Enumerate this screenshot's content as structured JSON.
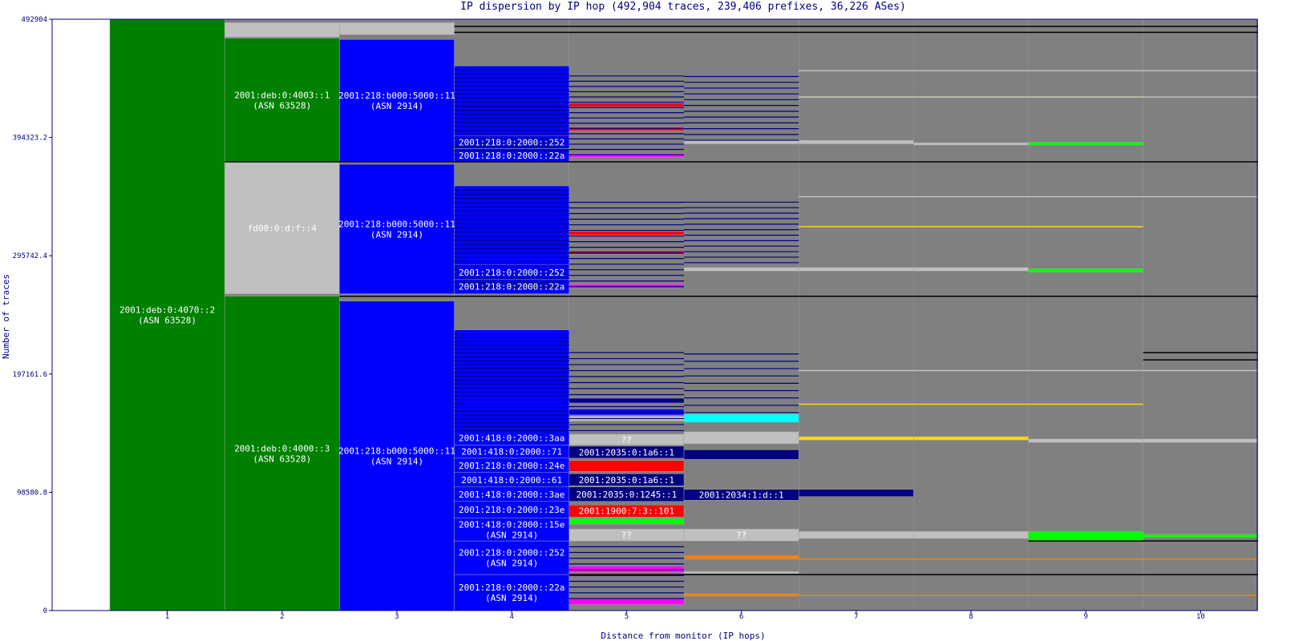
{
  "chart_data": {
    "type": "bar",
    "title": "IP dispersion by IP hop (492,904 traces, 239,406 prefixes, 36,226 ASes)",
    "xlabel": "Distance from monitor (IP hops)",
    "ylabel": "Number of traces",
    "x_ticks": [
      "1",
      "2",
      "3",
      "4",
      "5",
      "6",
      "7",
      "8",
      "9",
      "10"
    ],
    "y_ticks": [
      "492904",
      "394323.2",
      "295742.4",
      "197161.6",
      "98580.8",
      "0"
    ],
    "ylim": [
      0,
      492904
    ],
    "colors": {
      "axis": "#000080",
      "background": "#808080",
      "green": "#008000",
      "blue": "#0000ff",
      "navy": "#000080",
      "light_gray": "#c0c0c0",
      "red": "#ff0000",
      "magenta": "#ff00ff",
      "bright_green": "#00ff00",
      "cyan": "#00ffff",
      "orange": "#ff8000",
      "yellow": "#ffd700",
      "black": "#000000"
    },
    "cells": [
      {
        "hop": 1,
        "y0": 0,
        "y1": 492904,
        "color": "#008000",
        "labels": [
          "2001:deb:0:4070::2",
          "(ASN 63528)"
        ]
      },
      {
        "hop": 2,
        "y0": 374000,
        "y1": 477000,
        "color": "#008000",
        "labels": [
          "2001:deb:0:4003::1",
          "(ASN 63528)"
        ]
      },
      {
        "hop": 2,
        "y0": 478000,
        "y1": 490000,
        "color": "#c0c0c0",
        "labels": []
      },
      {
        "hop": 2,
        "y0": 264000,
        "y1": 374000,
        "color": "#c0c0c0",
        "labels": [
          "fd00:0:d:f::4"
        ]
      },
      {
        "hop": 2,
        "y0": 0,
        "y1": 262000,
        "color": "#008000",
        "labels": [
          "2001:deb:0:4000::3",
          "(ASN 63528)"
        ]
      },
      {
        "hop": 3,
        "y0": 374000,
        "y1": 476000,
        "color": "#0000ff",
        "labels": [
          "2001:218:b000:5000::11",
          "(ASN 2914)"
        ]
      },
      {
        "hop": 3,
        "y0": 480000,
        "y1": 490000,
        "color": "#c0c0c0",
        "labels": []
      },
      {
        "hop": 3,
        "y0": 264000,
        "y1": 372000,
        "color": "#0000ff",
        "labels": [
          "2001:218:b000:5000::11",
          "(ASN 2914)"
        ]
      },
      {
        "hop": 3,
        "y0": 0,
        "y1": 258000,
        "color": "#0000ff",
        "labels": [
          "2001:218:b000:5000::11",
          "(ASN 2914)"
        ]
      },
      {
        "hop": 4,
        "y0": 385000,
        "y1": 454000,
        "color": "#0000ff",
        "labels": []
      },
      {
        "hop": 4,
        "y0": 374000,
        "y1": 385000,
        "color": "#0000ff",
        "labels": [
          "2001:218:0:2000::22a"
        ]
      },
      {
        "hop": 4,
        "y0": 385000,
        "y1": 396000,
        "color": "#0000ff",
        "labels": [
          "2001:218:0:2000::252"
        ]
      },
      {
        "hop": 4,
        "y0": 276000,
        "y1": 354000,
        "color": "#0000ff",
        "labels": []
      },
      {
        "hop": 4,
        "y0": 264000,
        "y1": 276000,
        "color": "#0000ff",
        "labels": [
          "2001:218:0:2000::22a"
        ]
      },
      {
        "hop": 4,
        "y0": 276000,
        "y1": 288000,
        "color": "#0000ff",
        "labels": [
          "2001:218:0:2000::252"
        ]
      },
      {
        "hop": 4,
        "y0": 150000,
        "y1": 234000,
        "color": "#0000ff",
        "labels": []
      },
      {
        "hop": 4,
        "y0": 138000,
        "y1": 150000,
        "color": "#0000ff",
        "labels": [
          "2001:418:0:2000::3aa"
        ]
      },
      {
        "hop": 4,
        "y0": 127000,
        "y1": 138000,
        "color": "#0000ff",
        "labels": [
          "2001:418:0:2000::71"
        ]
      },
      {
        "hop": 4,
        "y0": 115000,
        "y1": 127000,
        "color": "#0000ff",
        "labels": [
          "2001:218:0:2000::24e"
        ]
      },
      {
        "hop": 4,
        "y0": 103000,
        "y1": 115000,
        "color": "#0000ff",
        "labels": [
          "2001:418:0:2000::61"
        ]
      },
      {
        "hop": 4,
        "y0": 91000,
        "y1": 103000,
        "color": "#0000ff",
        "labels": [
          "2001:418:0:2000::3ae"
        ]
      },
      {
        "hop": 4,
        "y0": 77000,
        "y1": 91000,
        "color": "#0000ff",
        "labels": [
          "2001:218:0:2000::23e"
        ]
      },
      {
        "hop": 4,
        "y0": 58000,
        "y1": 77000,
        "color": "#0000ff",
        "labels": [
          "2001:418:0:2000::15e",
          "(ASN 2914)"
        ]
      },
      {
        "hop": 4,
        "y0": 30000,
        "y1": 58000,
        "color": "#0000ff",
        "labels": [
          "2001:218:0:2000::252",
          "(ASN 2914)"
        ]
      },
      {
        "hop": 4,
        "y0": 0,
        "y1": 30000,
        "color": "#0000ff",
        "labels": [
          "2001:218:0:2000::22a",
          "(ASN 2914)"
        ]
      },
      {
        "hop": 5,
        "y0": 138000,
        "y1": 147000,
        "color": "#c0c0c0",
        "labels": [
          "??"
        ]
      },
      {
        "hop": 5,
        "y0": 127000,
        "y1": 137000,
        "color": "#000080",
        "labels": [
          "2001:2035:0:1a6::1"
        ]
      },
      {
        "hop": 5,
        "y0": 116000,
        "y1": 125000,
        "color": "#ff0000",
        "labels": []
      },
      {
        "hop": 5,
        "y0": 104000,
        "y1": 114000,
        "color": "#000080",
        "labels": [
          "2001:2035:0:1a6::1"
        ]
      },
      {
        "hop": 5,
        "y0": 91000,
        "y1": 103000,
        "color": "#000080",
        "labels": [
          "2001:2035:0:1245::1"
        ]
      },
      {
        "hop": 5,
        "y0": 78000,
        "y1": 88000,
        "color": "#ff0000",
        "labels": [
          "2001:1900:7:3::101"
        ]
      },
      {
        "hop": 5,
        "y0": 72000,
        "y1": 77000,
        "color": "#00ff00",
        "labels": []
      },
      {
        "hop": 5,
        "y0": 58000,
        "y1": 68000,
        "color": "#c0c0c0",
        "labels": [
          "??"
        ]
      },
      {
        "hop": 5,
        "y0": 32000,
        "y1": 37000,
        "color": "#ff00ff",
        "labels": []
      },
      {
        "hop": 5,
        "y0": 5000,
        "y1": 10000,
        "color": "#ff00ff",
        "labels": []
      },
      {
        "hop": 5,
        "y0": 378000,
        "y1": 381000,
        "color": "#ff00ff",
        "labels": []
      },
      {
        "hop": 5,
        "y0": 269000,
        "y1": 272000,
        "color": "#ff00ff",
        "labels": []
      },
      {
        "hop": 5,
        "y0": 420000,
        "y1": 423000,
        "color": "#ff0000",
        "labels": []
      },
      {
        "hop": 5,
        "y0": 400000,
        "y1": 403000,
        "color": "#ff0000",
        "labels": []
      },
      {
        "hop": 5,
        "y0": 297000,
        "y1": 300000,
        "color": "#ff0000",
        "labels": []
      },
      {
        "hop": 5,
        "y0": 313000,
        "y1": 316000,
        "color": "#ff0000",
        "labels": []
      },
      {
        "hop": 5,
        "y0": 163000,
        "y1": 168000,
        "color": "#0000ff",
        "labels": []
      },
      {
        "hop": 5,
        "y0": 158000,
        "y1": 162000,
        "color": "#c0c0c0",
        "labels": []
      },
      {
        "hop": 5,
        "y0": 173000,
        "y1": 177000,
        "color": "#000080",
        "labels": []
      },
      {
        "hop": 6,
        "y0": 139000,
        "y1": 149000,
        "color": "#c0c0c0",
        "labels": []
      },
      {
        "hop": 6,
        "y0": 92000,
        "y1": 101000,
        "color": "#000080",
        "labels": [
          "2001:2034:1:d::1"
        ]
      },
      {
        "hop": 6,
        "y0": 58000,
        "y1": 68000,
        "color": "#c0c0c0",
        "labels": [
          "??"
        ]
      },
      {
        "hop": 6,
        "y0": 157000,
        "y1": 164000,
        "color": "#00ffff",
        "labels": []
      },
      {
        "hop": 6,
        "y0": 44000,
        "y1": 45500,
        "color": "#ff8000",
        "labels": []
      },
      {
        "hop": 6,
        "y0": 12000,
        "y1": 14000,
        "color": "#ff8000",
        "labels": []
      },
      {
        "hop": 6,
        "y0": 31000,
        "y1": 32500,
        "color": "#c0c0c0",
        "labels": []
      },
      {
        "hop": 6,
        "y0": 126000,
        "y1": 134000,
        "color": "#000080",
        "labels": []
      },
      {
        "hop": 6,
        "y0": 389000,
        "y1": 392000,
        "color": "#c0c0c0",
        "labels": []
      },
      {
        "hop": 6,
        "y0": 283000,
        "y1": 286000,
        "color": "#c0c0c0",
        "labels": []
      },
      {
        "hop": 7,
        "y0": 142000,
        "y1": 145000,
        "color": "#ffd700",
        "labels": []
      },
      {
        "hop": 7,
        "y0": 60000,
        "y1": 66000,
        "color": "#c0c0c0",
        "labels": []
      },
      {
        "hop": 7,
        "y0": 95000,
        "y1": 101000,
        "color": "#000080",
        "labels": []
      },
      {
        "hop": 7,
        "y0": 389000,
        "y1": 392000,
        "color": "#c0c0c0",
        "labels": []
      },
      {
        "hop": 7,
        "y0": 283000,
        "y1": 286000,
        "color": "#c0c0c0",
        "labels": []
      },
      {
        "hop": 8,
        "y0": 142000,
        "y1": 145000,
        "color": "#ffd700",
        "labels": []
      },
      {
        "hop": 8,
        "y0": 60000,
        "y1": 66000,
        "color": "#c0c0c0",
        "labels": []
      },
      {
        "hop": 8,
        "y0": 388000,
        "y1": 390000,
        "color": "#c0c0c0",
        "labels": []
      },
      {
        "hop": 8,
        "y0": 283000,
        "y1": 286000,
        "color": "#c0c0c0",
        "labels": []
      },
      {
        "hop": 9,
        "y0": 58000,
        "y1": 66000,
        "color": "#00ff00",
        "labels": []
      },
      {
        "hop": 9,
        "y0": 388000,
        "y1": 390500,
        "color": "#00ff00",
        "labels": []
      },
      {
        "hop": 9,
        "y0": 282000,
        "y1": 285000,
        "color": "#00ff00",
        "labels": []
      },
      {
        "hop": 9,
        "y0": 140000,
        "y1": 143000,
        "color": "#c0c0c0",
        "labels": []
      },
      {
        "hop": 10,
        "y0": 61000,
        "y1": 63500,
        "color": "#00ff00",
        "labels": []
      },
      {
        "hop": 10,
        "y0": 140000,
        "y1": 143000,
        "color": "#c0c0c0",
        "labels": []
      }
    ],
    "lines": [
      {
        "hops": [
          2,
          10
        ],
        "y": 374000,
        "color": "#000000"
      },
      {
        "hops": [
          3,
          10
        ],
        "y": 262000,
        "color": "#000000"
      },
      {
        "hops": [
          4,
          10
        ],
        "y": 487000,
        "color": "#000000"
      },
      {
        "hops": [
          4,
          10
        ],
        "y": 482000,
        "color": "#000000"
      },
      {
        "hops": [
          9,
          10
        ],
        "y": 58000,
        "color": "#000000"
      },
      {
        "hops": [
          5,
          10
        ],
        "y": 30000,
        "color": "#000000"
      },
      {
        "hops": [
          7,
          10
        ],
        "y": 450000,
        "color": "#c0c0c0"
      },
      {
        "hops": [
          7,
          10
        ],
        "y": 345000,
        "color": "#c0c0c0"
      },
      {
        "hops": [
          7,
          10
        ],
        "y": 200000,
        "color": "#c0c0c0"
      },
      {
        "hops": [
          7,
          9
        ],
        "y": 172000,
        "color": "#ffd700"
      },
      {
        "hops": [
          7,
          9
        ],
        "y": 320000,
        "color": "#ffd700"
      },
      {
        "hops": [
          7,
          9
        ],
        "y": 428000,
        "color": "#ffd700"
      },
      {
        "hops": [
          7,
          10
        ],
        "y": 428000,
        "color": "#c0c0c0"
      },
      {
        "hops": [
          6,
          10
        ],
        "y": 43000,
        "color": "#ff8000"
      },
      {
        "hops": [
          6,
          10
        ],
        "y": 12500,
        "color": "#ff8000"
      },
      {
        "hops": [
          10,
          10
        ],
        "y": 215000,
        "color": "#000000"
      },
      {
        "hops": [
          10,
          10
        ],
        "y": 209000,
        "color": "#000000"
      }
    ],
    "stripes": [
      {
        "hop": 4,
        "y0": 380000,
        "y1": 454000,
        "count": 22,
        "color": "#000080"
      },
      {
        "hop": 4,
        "y0": 270000,
        "y1": 354000,
        "count": 24,
        "color": "#000080"
      },
      {
        "hop": 4,
        "y0": 150000,
        "y1": 234000,
        "count": 26,
        "color": "#000080"
      },
      {
        "hop": 5,
        "y0": 380000,
        "y1": 450000,
        "count": 16,
        "color": "#000080"
      },
      {
        "hop": 5,
        "y0": 270000,
        "y1": 345000,
        "count": 16,
        "color": "#000080"
      },
      {
        "hop": 5,
        "y0": 150000,
        "y1": 220000,
        "count": 14,
        "color": "#000080"
      },
      {
        "hop": 5,
        "y0": 10000,
        "y1": 58000,
        "count": 10,
        "color": "#000080"
      },
      {
        "hop": 6,
        "y0": 392000,
        "y1": 450000,
        "count": 12,
        "color": "#000080"
      },
      {
        "hop": 6,
        "y0": 290000,
        "y1": 345000,
        "count": 12,
        "color": "#000080"
      },
      {
        "hop": 6,
        "y0": 165000,
        "y1": 220000,
        "count": 9,
        "color": "#000080"
      }
    ]
  }
}
